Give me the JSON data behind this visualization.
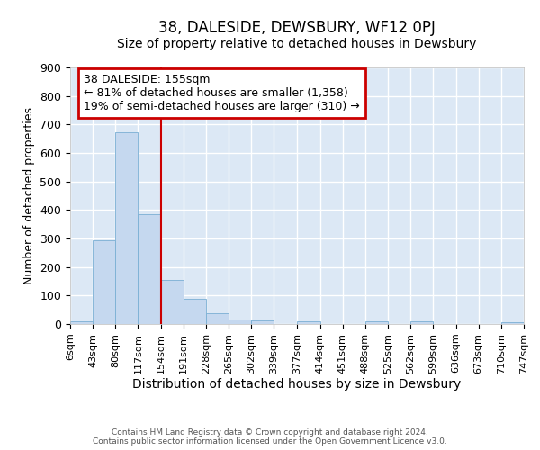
{
  "title": "38, DALESIDE, DEWSBURY, WF12 0PJ",
  "subtitle": "Size of property relative to detached houses in Dewsbury",
  "xlabel": "Distribution of detached houses by size in Dewsbury",
  "ylabel": "Number of detached properties",
  "bar_color": "#c5d8ef",
  "bar_edge_color": "#7aafd4",
  "background_color": "#dce8f5",
  "grid_color": "#ffffff",
  "vline_x": 154,
  "vline_color": "#cc0000",
  "annotation_box_color": "#cc0000",
  "annotation_text": "38 DALESIDE: 155sqm\n← 81% of detached houses are smaller (1,358)\n19% of semi-detached houses are larger (310) →",
  "annotation_fontsize": 9,
  "bin_edges": [
    6,
    43,
    80,
    117,
    154,
    191,
    228,
    265,
    302,
    339,
    377,
    414,
    451,
    488,
    525,
    562,
    599,
    636,
    673,
    710,
    747
  ],
  "bin_labels": [
    "6sqm",
    "43sqm",
    "80sqm",
    "117sqm",
    "154sqm",
    "191sqm",
    "228sqm",
    "265sqm",
    "302sqm",
    "339sqm",
    "377sqm",
    "414sqm",
    "451sqm",
    "488sqm",
    "525sqm",
    "562sqm",
    "599sqm",
    "636sqm",
    "673sqm",
    "710sqm",
    "747sqm"
  ],
  "bar_heights": [
    8,
    295,
    672,
    385,
    155,
    88,
    38,
    15,
    12,
    0,
    10,
    0,
    0,
    8,
    0,
    8,
    0,
    0,
    0,
    5
  ],
  "ylim": [
    0,
    900
  ],
  "yticks": [
    0,
    100,
    200,
    300,
    400,
    500,
    600,
    700,
    800,
    900
  ],
  "footnote": "Contains HM Land Registry data © Crown copyright and database right 2024.\nContains public sector information licensed under the Open Government Licence v3.0.",
  "title_fontsize": 12,
  "subtitle_fontsize": 10,
  "xlabel_fontsize": 10,
  "ylabel_fontsize": 9,
  "tick_fontsize": 8,
  "footnote_fontsize": 6.5
}
